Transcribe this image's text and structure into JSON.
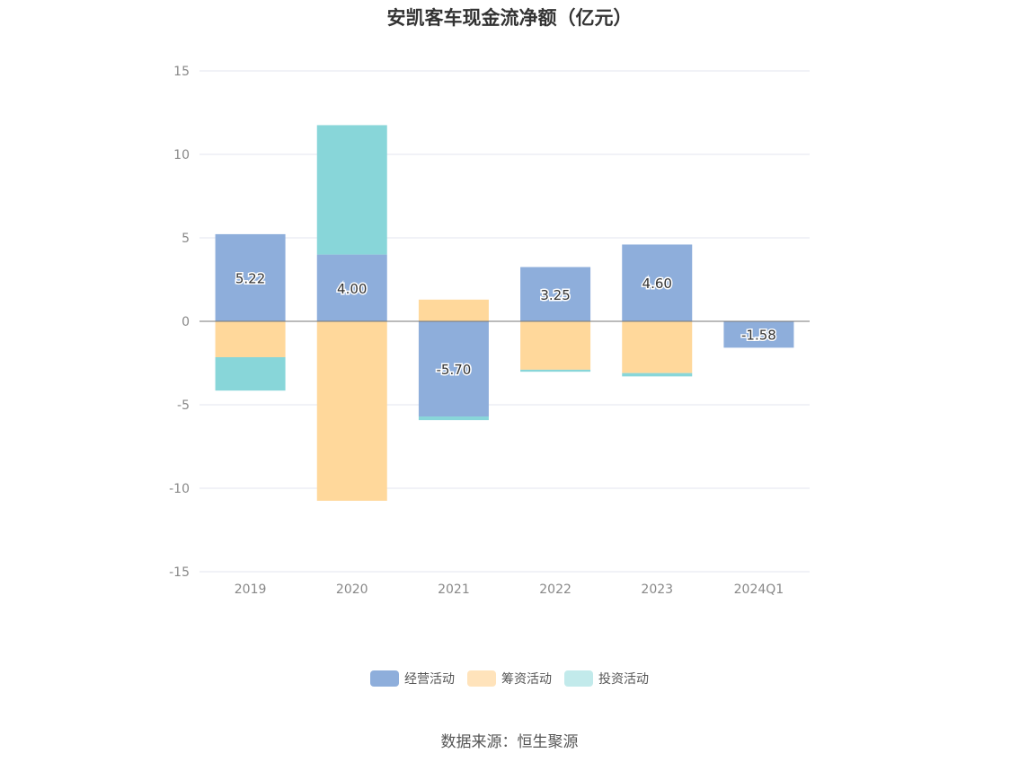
{
  "chart_data": {
    "type": "bar",
    "stacked": true,
    "title": "安凯客车现金流净额（亿元）",
    "categories": [
      "2019",
      "2020",
      "2021",
      "2022",
      "2023",
      "2024Q1"
    ],
    "series": [
      {
        "name": "经营活动",
        "color": "#8eaedb",
        "values": [
          5.22,
          4.0,
          -5.7,
          3.25,
          4.6,
          -1.58
        ]
      },
      {
        "name": "筹资活动",
        "color": "#ffd89b",
        "values": [
          -2.15,
          -10.75,
          1.3,
          -2.9,
          -3.1,
          0.0
        ]
      },
      {
        "name": "投资活动",
        "color": "#88d6d9",
        "values": [
          -2.0,
          7.75,
          -0.22,
          -0.12,
          -0.2,
          0.0
        ]
      }
    ],
    "data_labels": [
      "5.22",
      "4.00",
      "-5.70",
      "3.25",
      "4.60",
      "-1.58"
    ],
    "yticks": [
      "15",
      "10",
      "5",
      "0",
      "-5",
      "-10",
      "-15"
    ],
    "ylim": [
      -15,
      15
    ],
    "grid": true,
    "legend_position": "bottom"
  },
  "legend": [
    {
      "label": "经营活动",
      "color": "#8eaedb"
    },
    {
      "label": "筹资活动",
      "color": "#ffe3bb"
    },
    {
      "label": "投资活动",
      "color": "#c2eaeb"
    }
  ],
  "source": "数据来源：恒生聚源"
}
